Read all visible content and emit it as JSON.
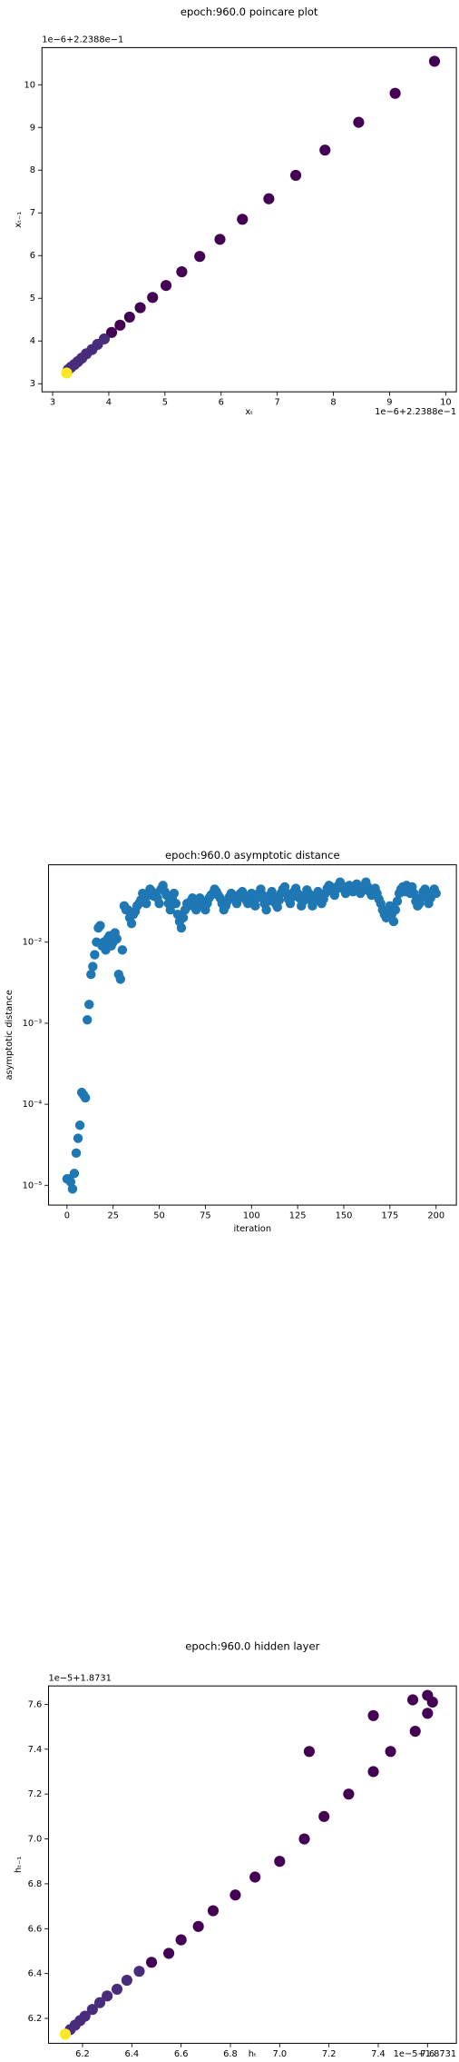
{
  "chart_data": [
    {
      "type": "scatter",
      "title": "epoch:960.0 poincare plot",
      "x_label": "xₜ",
      "y_label": "xₜ₋₁",
      "x_offset_label": "1e−6+2.2388e−1",
      "y_offset_label": "1e−6+2.2388e−1",
      "x": [
        9.8,
        9.1,
        8.45,
        7.85,
        7.33,
        6.85,
        6.38,
        5.98,
        5.62,
        5.3,
        5.02,
        4.78,
        4.56,
        4.37,
        4.2,
        4.05,
        3.92,
        3.8,
        3.7,
        3.6,
        3.52,
        3.45,
        3.39,
        3.33,
        3.28,
        3.25
      ],
      "values": [
        10.55,
        9.8,
        9.12,
        8.47,
        7.88,
        7.33,
        6.85,
        6.38,
        5.98,
        5.62,
        5.3,
        5.02,
        4.78,
        4.56,
        4.37,
        4.2,
        4.05,
        3.92,
        3.8,
        3.7,
        3.6,
        3.52,
        3.45,
        3.39,
        3.33,
        3.25
      ],
      "colors": [
        "#440154",
        "#440154",
        "#440154",
        "#440154",
        "#440154",
        "#440154",
        "#440154",
        "#440154",
        "#440154",
        "#440154",
        "#440154",
        "#440154",
        "#440154",
        "#440154",
        "#440154",
        "#440154",
        "#472d7b",
        "#472d7b",
        "#472d7b",
        "#472d7b",
        "#472d7b",
        "#472d7b",
        "#472d7b",
        "#472d7b",
        "#472d7b",
        "#fde725"
      ],
      "xlim": [
        2.81,
        10.19
      ],
      "ylim": [
        2.81,
        10.87
      ],
      "xticks": [
        3,
        4,
        5,
        6,
        7,
        8,
        9,
        10
      ],
      "yticks": [
        3,
        4,
        5,
        6,
        7,
        8,
        9,
        10
      ]
    },
    {
      "type": "scatter",
      "title": "epoch:960.0 asymptotic distance",
      "x_label": "iteration",
      "y_label": "asymptotic distance",
      "y_scale": "log",
      "color": "#1f77b4",
      "x": [
        0,
        1,
        2,
        3,
        4,
        5,
        6,
        7,
        8,
        9,
        10,
        11,
        12,
        13,
        14,
        15,
        16,
        17,
        18,
        19,
        20,
        21,
        22,
        23,
        24,
        25,
        26,
        27,
        28,
        29,
        30,
        31,
        32,
        33,
        34,
        35,
        36,
        37,
        38,
        39,
        40,
        41,
        42,
        43,
        44,
        45,
        46,
        47,
        48,
        49,
        50,
        51,
        52,
        53,
        54,
        55,
        56,
        57,
        58,
        59,
        60,
        61,
        62,
        63,
        64,
        65,
        66,
        67,
        68,
        69,
        70,
        71,
        72,
        73,
        74,
        75,
        76,
        77,
        78,
        79,
        80,
        81,
        82,
        83,
        84,
        85,
        86,
        87,
        88,
        89,
        90,
        91,
        92,
        93,
        94,
        95,
        96,
        97,
        98,
        99,
        100,
        101,
        102,
        103,
        104,
        105,
        106,
        107,
        108,
        109,
        110,
        111,
        112,
        113,
        114,
        115,
        116,
        117,
        118,
        119,
        120,
        121,
        122,
        123,
        124,
        125,
        126,
        127,
        128,
        129,
        130,
        131,
        132,
        133,
        134,
        135,
        136,
        137,
        138,
        139,
        140,
        141,
        142,
        143,
        144,
        145,
        146,
        147,
        148,
        149,
        150,
        151,
        152,
        153,
        154,
        155,
        156,
        157,
        158,
        159,
        160,
        161,
        162,
        163,
        164,
        165,
        166,
        167,
        168,
        169,
        170,
        171,
        172,
        173,
        174,
        175,
        176,
        177,
        178,
        179,
        180,
        181,
        182,
        183,
        184,
        185,
        186,
        187,
        188,
        189,
        190,
        191,
        192,
        193,
        194,
        195,
        196,
        197,
        198,
        199,
        200
      ],
      "values": [
        1.2e-05,
        1.2e-05,
        1.1e-05,
        9e-06,
        1.4e-05,
        2.5e-05,
        3.8e-05,
        5.5e-05,
        0.00014,
        0.00013,
        0.00012,
        0.0011,
        0.0017,
        0.004,
        0.005,
        0.007,
        0.01,
        0.015,
        0.016,
        0.009,
        0.01,
        0.008,
        0.011,
        0.012,
        0.009,
        0.01,
        0.013,
        0.011,
        0.004,
        0.0035,
        0.008,
        0.028,
        0.025,
        0.025,
        0.02,
        0.017,
        0.022,
        0.024,
        0.028,
        0.03,
        0.033,
        0.04,
        0.035,
        0.03,
        0.038,
        0.045,
        0.042,
        0.037,
        0.04,
        0.035,
        0.03,
        0.045,
        0.05,
        0.042,
        0.038,
        0.03,
        0.025,
        0.035,
        0.04,
        0.03,
        0.022,
        0.018,
        0.015,
        0.02,
        0.025,
        0.03,
        0.028,
        0.032,
        0.035,
        0.03,
        0.025,
        0.03,
        0.035,
        0.032,
        0.028,
        0.025,
        0.03,
        0.035,
        0.038,
        0.04,
        0.045,
        0.042,
        0.038,
        0.035,
        0.03,
        0.025,
        0.028,
        0.032,
        0.036,
        0.04,
        0.038,
        0.034,
        0.03,
        0.035,
        0.04,
        0.042,
        0.038,
        0.033,
        0.03,
        0.036,
        0.04,
        0.032,
        0.028,
        0.035,
        0.04,
        0.045,
        0.038,
        0.03,
        0.025,
        0.032,
        0.038,
        0.042,
        0.036,
        0.03,
        0.027,
        0.033,
        0.04,
        0.045,
        0.048,
        0.04,
        0.034,
        0.03,
        0.036,
        0.042,
        0.046,
        0.04,
        0.035,
        0.028,
        0.032,
        0.038,
        0.044,
        0.04,
        0.033,
        0.028,
        0.032,
        0.038,
        0.042,
        0.036,
        0.03,
        0.034,
        0.04,
        0.046,
        0.05,
        0.048,
        0.042,
        0.038,
        0.045,
        0.05,
        0.055,
        0.05,
        0.045,
        0.04,
        0.045,
        0.05,
        0.046,
        0.042,
        0.048,
        0.052,
        0.045,
        0.04,
        0.043,
        0.05,
        0.055,
        0.048,
        0.042,
        0.038,
        0.042,
        0.046,
        0.04,
        0.034,
        0.03,
        0.025,
        0.022,
        0.02,
        0.025,
        0.028,
        0.022,
        0.018,
        0.025,
        0.032,
        0.04,
        0.045,
        0.048,
        0.042,
        0.05,
        0.045,
        0.04,
        0.048,
        0.04,
        0.032,
        0.028,
        0.03,
        0.035,
        0.042,
        0.045,
        0.038,
        0.03,
        0.035,
        0.04,
        0.045,
        0.04
      ],
      "xlim": [
        -10,
        211
      ],
      "ylim": [
        5.7e-06,
        0.09
      ],
      "xticks": [
        0,
        25,
        50,
        75,
        100,
        125,
        150,
        175,
        200
      ],
      "yticks": [
        {
          "value": 1e-05,
          "label": "10⁻⁵"
        },
        {
          "value": 0.0001,
          "label": "10⁻⁴"
        },
        {
          "value": 0.001,
          "label": "10⁻³"
        },
        {
          "value": 0.01,
          "label": "10⁻²"
        }
      ]
    },
    {
      "type": "scatter",
      "title": "epoch:960.0 hidden layer",
      "x_label": "hₜ",
      "y_label": "hₜ₋₁",
      "x_offset_label": "1e−5+1.8731",
      "y_offset_label": "1e−5+1.8731",
      "x": [
        7.12,
        7.38,
        7.54,
        7.6,
        7.62,
        7.6,
        7.55,
        7.45,
        7.38,
        7.28,
        7.18,
        7.1,
        7.0,
        6.9,
        6.82,
        6.73,
        6.67,
        6.6,
        6.55,
        6.48,
        6.43,
        6.38,
        6.34,
        6.3,
        6.27,
        6.24,
        6.21,
        6.19,
        6.17,
        6.15,
        6.13
      ],
      "values": [
        7.39,
        7.55,
        7.62,
        7.64,
        7.61,
        7.56,
        7.48,
        7.39,
        7.3,
        7.2,
        7.1,
        7.0,
        6.9,
        6.83,
        6.75,
        6.68,
        6.61,
        6.55,
        6.49,
        6.45,
        6.41,
        6.37,
        6.33,
        6.3,
        6.27,
        6.24,
        6.21,
        6.19,
        6.17,
        6.15,
        6.13
      ],
      "colors": [
        "#440154",
        "#440154",
        "#440154",
        "#440154",
        "#440154",
        "#440154",
        "#440154",
        "#440154",
        "#440154",
        "#440154",
        "#440154",
        "#440154",
        "#440154",
        "#440154",
        "#440154",
        "#440154",
        "#440154",
        "#440154",
        "#440154",
        "#440154",
        "#472d7b",
        "#472d7b",
        "#472d7b",
        "#472d7b",
        "#472d7b",
        "#472d7b",
        "#472d7b",
        "#472d7b",
        "#472d7b",
        "#472d7b",
        "#fde725"
      ],
      "xlim": [
        6.062,
        7.717
      ],
      "ylim": [
        6.089,
        7.682
      ],
      "xticks": [
        6.2,
        6.4,
        6.6,
        6.8,
        {
          "value": 7,
          "label": "7.0"
        },
        7.2,
        7.4,
        7.6
      ],
      "yticks": [
        6.2,
        6.4,
        6.6,
        6.8,
        {
          "value": 7,
          "label": "7.0"
        },
        7.2,
        7.4,
        7.6
      ]
    }
  ]
}
